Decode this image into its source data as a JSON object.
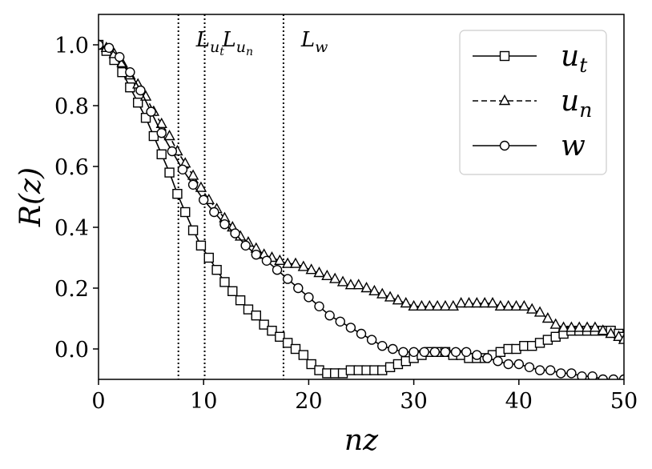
{
  "chart_data": {
    "type": "line",
    "xlabel": "nz",
    "ylabel": "R(z)",
    "xlim": [
      0,
      50
    ],
    "ylim": [
      -0.1,
      1.1
    ],
    "x_ticks": [
      {
        "value": 0,
        "label": "0"
      },
      {
        "value": 10,
        "label": "10"
      },
      {
        "value": 20,
        "label": "20"
      },
      {
        "value": 30,
        "label": "30"
      },
      {
        "value": 40,
        "label": "40"
      },
      {
        "value": 50,
        "label": "50"
      }
    ],
    "y_ticks": [
      {
        "value": 0.0,
        "label": "0.0"
      },
      {
        "value": 0.2,
        "label": "0.2"
      },
      {
        "value": 0.4,
        "label": "0.4"
      },
      {
        "value": 0.6,
        "label": "0.6"
      },
      {
        "value": 0.8,
        "label": "0.8"
      },
      {
        "value": 1.0,
        "label": "1.0"
      }
    ],
    "grid": false,
    "legend_position": "top-right",
    "vertical_lines": [
      {
        "x": 7.6,
        "label": "L_ut"
      },
      {
        "x": 10.1,
        "label": "L_un"
      },
      {
        "x": 17.6,
        "label": "L_w"
      }
    ],
    "series": [
      {
        "name": "u_t",
        "marker": "square",
        "linestyle": "solid",
        "points": [
          [
            0,
            1.0
          ],
          [
            0.75,
            0.98
          ],
          [
            1.5,
            0.95
          ],
          [
            2.25,
            0.91
          ],
          [
            3,
            0.86
          ],
          [
            3.75,
            0.81
          ],
          [
            4.5,
            0.76
          ],
          [
            5.25,
            0.7
          ],
          [
            6,
            0.64
          ],
          [
            6.75,
            0.58
          ],
          [
            7.5,
            0.51
          ],
          [
            8.25,
            0.45
          ],
          [
            9,
            0.39
          ],
          [
            9.75,
            0.34
          ],
          [
            10.5,
            0.3
          ],
          [
            11.25,
            0.26
          ],
          [
            12,
            0.22
          ],
          [
            12.75,
            0.19
          ],
          [
            13.5,
            0.16
          ],
          [
            14.25,
            0.13
          ],
          [
            15,
            0.11
          ],
          [
            15.75,
            0.08
          ],
          [
            16.5,
            0.06
          ],
          [
            17.25,
            0.04
          ],
          [
            18,
            0.02
          ],
          [
            18.75,
            0.0
          ],
          [
            19.5,
            -0.02
          ],
          [
            20.25,
            -0.05
          ],
          [
            21,
            -0.07
          ],
          [
            21.75,
            -0.08
          ],
          [
            22.5,
            -0.08
          ],
          [
            23.25,
            -0.08
          ],
          [
            24,
            -0.07
          ],
          [
            24.75,
            -0.07
          ],
          [
            25.5,
            -0.07
          ],
          [
            26.25,
            -0.07
          ],
          [
            27,
            -0.07
          ],
          [
            27.75,
            -0.06
          ],
          [
            28.5,
            -0.05
          ],
          [
            29.25,
            -0.04
          ],
          [
            30,
            -0.03
          ],
          [
            30.75,
            -0.02
          ],
          [
            31.5,
            -0.01
          ],
          [
            32.25,
            -0.01
          ],
          [
            33,
            -0.01
          ],
          [
            33.75,
            -0.02
          ],
          [
            34.5,
            -0.02
          ],
          [
            35.25,
            -0.03
          ],
          [
            36,
            -0.03
          ],
          [
            36.75,
            -0.03
          ],
          [
            37.5,
            -0.02
          ],
          [
            38.25,
            -0.01
          ],
          [
            39,
            0.0
          ],
          [
            39.75,
            0.0
          ],
          [
            40.5,
            0.01
          ],
          [
            41.25,
            0.01
          ],
          [
            42,
            0.02
          ],
          [
            42.75,
            0.03
          ],
          [
            43.5,
            0.04
          ],
          [
            44.25,
            0.05
          ],
          [
            45,
            0.06
          ],
          [
            45.75,
            0.06
          ],
          [
            46.5,
            0.06
          ],
          [
            47.25,
            0.06
          ],
          [
            48,
            0.06
          ],
          [
            48.75,
            0.06
          ],
          [
            49.5,
            0.05
          ],
          [
            50,
            0.04
          ]
        ]
      },
      {
        "name": "u_n",
        "marker": "triangle",
        "linestyle": "dashed",
        "points": [
          [
            0,
            1.0
          ],
          [
            0.75,
            0.99
          ],
          [
            1.5,
            0.97
          ],
          [
            2.25,
            0.94
          ],
          [
            3,
            0.9
          ],
          [
            3.75,
            0.87
          ],
          [
            4.5,
            0.83
          ],
          [
            5.25,
            0.78
          ],
          [
            6,
            0.74
          ],
          [
            6.75,
            0.7
          ],
          [
            7.5,
            0.65
          ],
          [
            8.25,
            0.61
          ],
          [
            9,
            0.57
          ],
          [
            9.75,
            0.53
          ],
          [
            10.5,
            0.49
          ],
          [
            11.25,
            0.46
          ],
          [
            12,
            0.43
          ],
          [
            12.75,
            0.4
          ],
          [
            13.5,
            0.37
          ],
          [
            14.25,
            0.35
          ],
          [
            15,
            0.33
          ],
          [
            15.75,
            0.31
          ],
          [
            16.5,
            0.3
          ],
          [
            17.25,
            0.29
          ],
          [
            18,
            0.28
          ],
          [
            18.75,
            0.28
          ],
          [
            19.5,
            0.27
          ],
          [
            20.25,
            0.26
          ],
          [
            21,
            0.25
          ],
          [
            21.75,
            0.24
          ],
          [
            22.5,
            0.23
          ],
          [
            23.25,
            0.22
          ],
          [
            24,
            0.21
          ],
          [
            24.75,
            0.21
          ],
          [
            25.5,
            0.2
          ],
          [
            26.25,
            0.19
          ],
          [
            27,
            0.18
          ],
          [
            27.75,
            0.17
          ],
          [
            28.5,
            0.16
          ],
          [
            29.25,
            0.15
          ],
          [
            30,
            0.14
          ],
          [
            30.75,
            0.14
          ],
          [
            31.5,
            0.14
          ],
          [
            32.25,
            0.14
          ],
          [
            33,
            0.14
          ],
          [
            33.75,
            0.14
          ],
          [
            34.5,
            0.15
          ],
          [
            35.25,
            0.15
          ],
          [
            36,
            0.15
          ],
          [
            36.75,
            0.15
          ],
          [
            37.5,
            0.15
          ],
          [
            38.25,
            0.14
          ],
          [
            39,
            0.14
          ],
          [
            39.75,
            0.14
          ],
          [
            40.5,
            0.14
          ],
          [
            41.25,
            0.13
          ],
          [
            42,
            0.12
          ],
          [
            42.75,
            0.1
          ],
          [
            43.5,
            0.08
          ],
          [
            44.25,
            0.07
          ],
          [
            45,
            0.07
          ],
          [
            45.75,
            0.07
          ],
          [
            46.5,
            0.07
          ],
          [
            47.25,
            0.07
          ],
          [
            48,
            0.06
          ],
          [
            48.75,
            0.05
          ],
          [
            49.5,
            0.04
          ],
          [
            50,
            0.03
          ]
        ]
      },
      {
        "name": "w",
        "marker": "circle",
        "linestyle": "solid",
        "points": [
          [
            0,
            1.0
          ],
          [
            1,
            0.99
          ],
          [
            2,
            0.96
          ],
          [
            3,
            0.91
          ],
          [
            4,
            0.85
          ],
          [
            5,
            0.78
          ],
          [
            6,
            0.71
          ],
          [
            7,
            0.65
          ],
          [
            8,
            0.59
          ],
          [
            9,
            0.54
          ],
          [
            10,
            0.49
          ],
          [
            11,
            0.45
          ],
          [
            12,
            0.41
          ],
          [
            13,
            0.38
          ],
          [
            14,
            0.34
          ],
          [
            15,
            0.31
          ],
          [
            16,
            0.29
          ],
          [
            17,
            0.26
          ],
          [
            18,
            0.23
          ],
          [
            19,
            0.2
          ],
          [
            20,
            0.17
          ],
          [
            21,
            0.14
          ],
          [
            22,
            0.11
          ],
          [
            23,
            0.09
          ],
          [
            24,
            0.07
          ],
          [
            25,
            0.05
          ],
          [
            26,
            0.03
          ],
          [
            27,
            0.01
          ],
          [
            28,
            0.0
          ],
          [
            29,
            -0.01
          ],
          [
            30,
            -0.01
          ],
          [
            31,
            -0.01
          ],
          [
            32,
            -0.01
          ],
          [
            33,
            -0.01
          ],
          [
            34,
            -0.01
          ],
          [
            35,
            -0.01
          ],
          [
            36,
            -0.02
          ],
          [
            37,
            -0.03
          ],
          [
            38,
            -0.04
          ],
          [
            39,
            -0.05
          ],
          [
            40,
            -0.05
          ],
          [
            41,
            -0.06
          ],
          [
            42,
            -0.07
          ],
          [
            43,
            -0.07
          ],
          [
            44,
            -0.08
          ],
          [
            45,
            -0.08
          ],
          [
            46,
            -0.09
          ],
          [
            47,
            -0.09
          ],
          [
            48,
            -0.1
          ],
          [
            49,
            -0.1
          ],
          [
            50,
            -0.1
          ]
        ]
      }
    ]
  }
}
